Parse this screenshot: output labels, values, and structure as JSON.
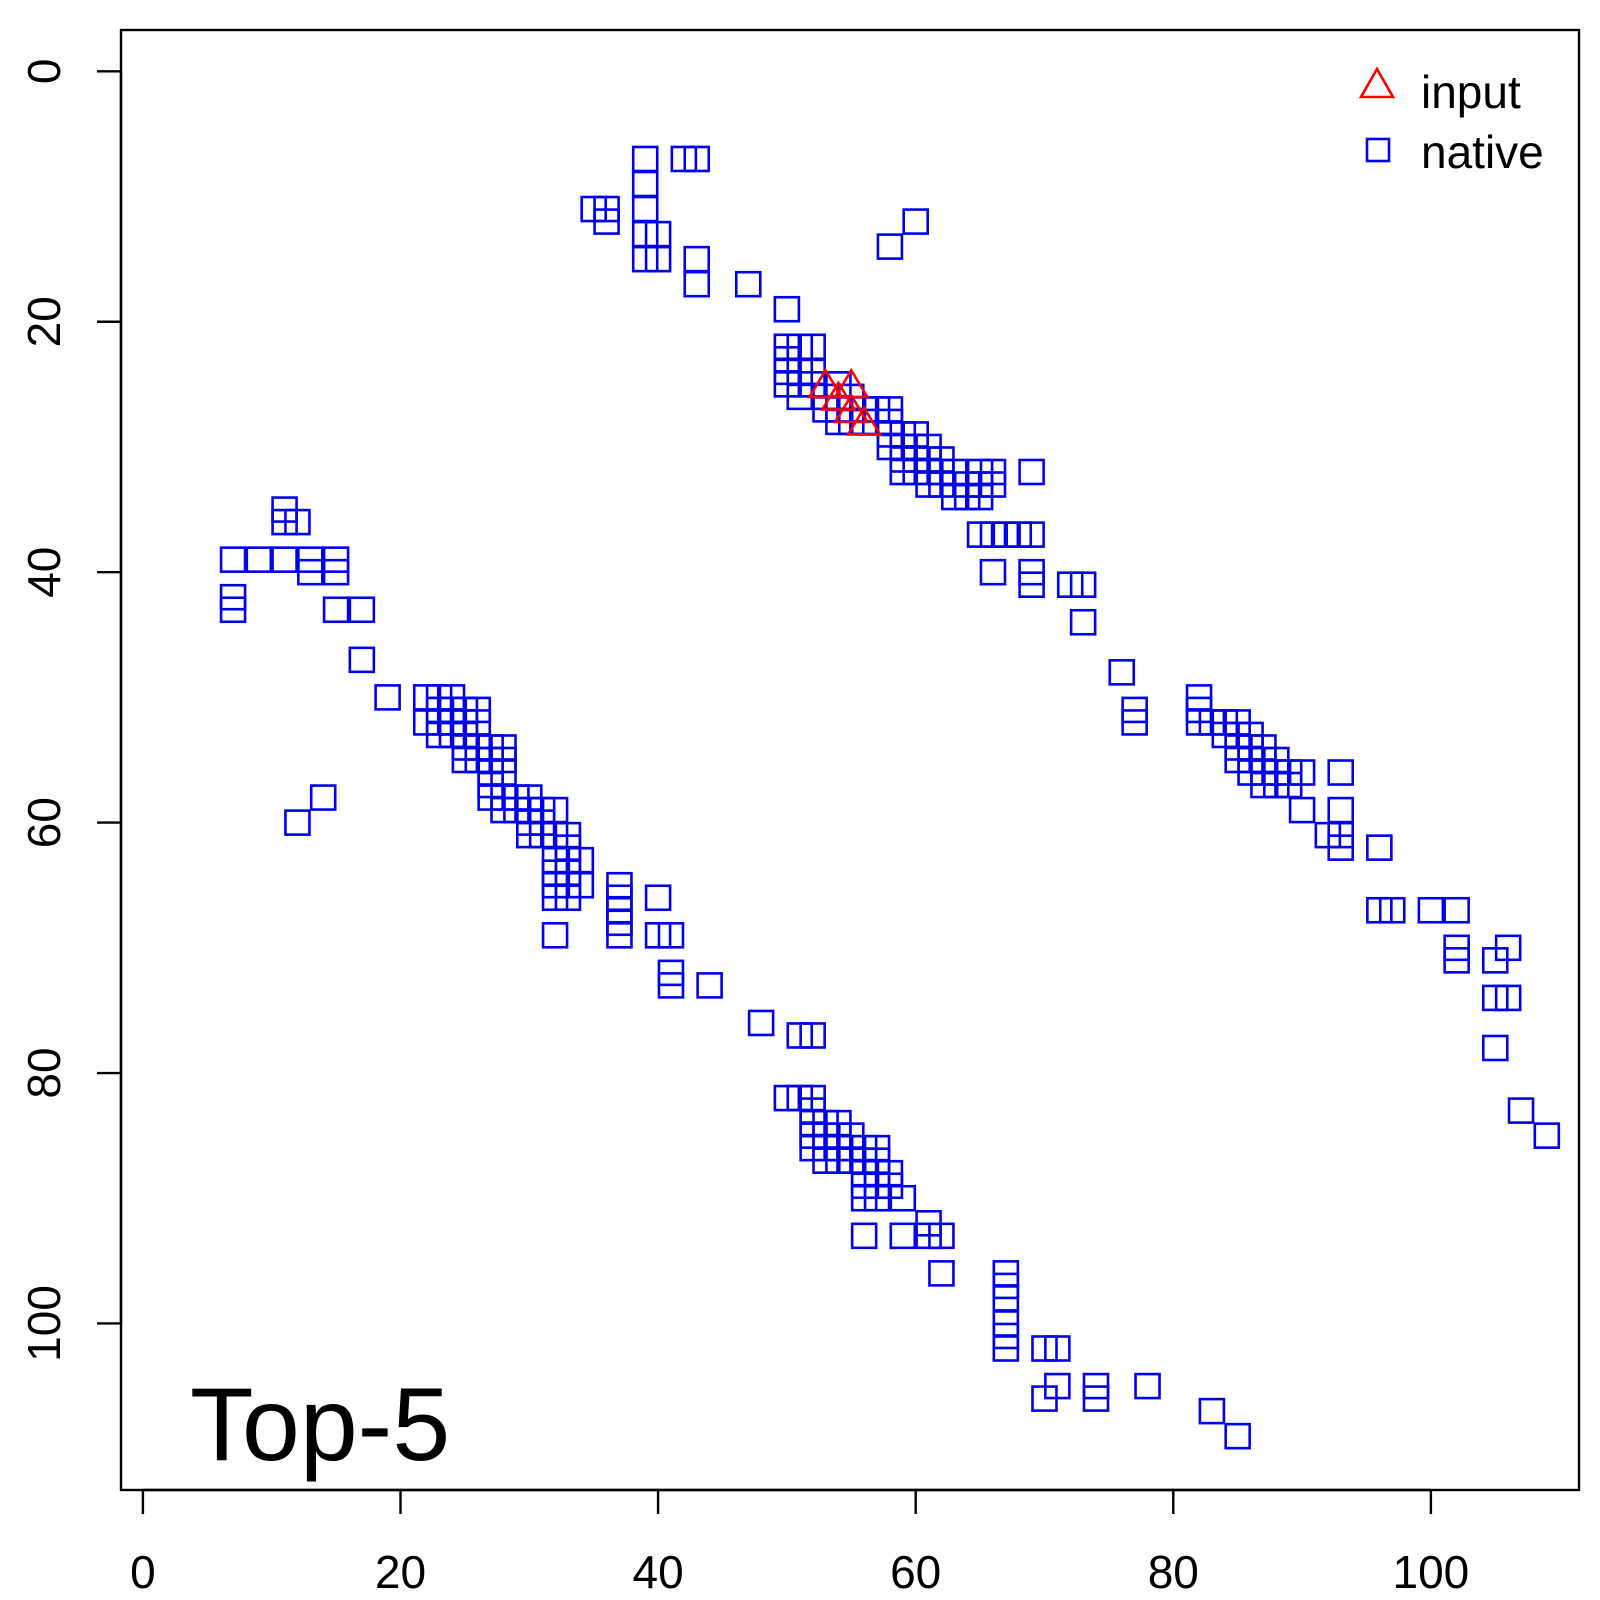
{
  "chart_data": {
    "type": "scatter",
    "title": "",
    "xlabel": "",
    "ylabel": "",
    "xlim": [
      -1.7,
      111.5
    ],
    "ylim": [
      -3.3,
      113.3
    ],
    "y_reversed": true,
    "grid": false,
    "panel_label": "Top-5",
    "x_ticks": [
      "0",
      "20",
      "40",
      "60",
      "80",
      "100"
    ],
    "y_ticks": [
      "0",
      "20",
      "40",
      "60",
      "80",
      "100"
    ],
    "legend": {
      "position": "top-right",
      "entries": [
        {
          "label": "input",
          "marker": "triangle",
          "color": "#ff0000"
        },
        {
          "label": "native",
          "marker": "square",
          "color": "#0000ee"
        }
      ]
    },
    "series": [
      {
        "name": "input",
        "marker": "triangle",
        "color": "#ff0000",
        "points": [
          [
            53,
            25
          ],
          [
            54,
            26
          ],
          [
            55,
            25
          ],
          [
            55,
            27
          ],
          [
            56,
            28
          ]
        ]
      },
      {
        "name": "native",
        "marker": "square",
        "color": "#0000ee",
        "points": [
          [
            39,
            7
          ],
          [
            39,
            9
          ],
          [
            39,
            11
          ],
          [
            39,
            13
          ],
          [
            39,
            15
          ],
          [
            40,
            13
          ],
          [
            40,
            15
          ],
          [
            42,
            7
          ],
          [
            43,
            7
          ],
          [
            35,
            11
          ],
          [
            36,
            11
          ],
          [
            36,
            12
          ],
          [
            43,
            15
          ],
          [
            43,
            17
          ],
          [
            47,
            17
          ],
          [
            50,
            19
          ],
          [
            58,
            14
          ],
          [
            60,
            12
          ],
          [
            50,
            22
          ],
          [
            50,
            23
          ],
          [
            50,
            24
          ],
          [
            50,
            25
          ],
          [
            51,
            22
          ],
          [
            51,
            24
          ],
          [
            51,
            26
          ],
          [
            52,
            22
          ],
          [
            52,
            24
          ],
          [
            52,
            25
          ],
          [
            53,
            26
          ],
          [
            53,
            27
          ],
          [
            54,
            25
          ],
          [
            54,
            27
          ],
          [
            54,
            28
          ],
          [
            55,
            26
          ],
          [
            55,
            28
          ],
          [
            56,
            27
          ],
          [
            56,
            28
          ],
          [
            57,
            27
          ],
          [
            58,
            27
          ],
          [
            58,
            28
          ],
          [
            58,
            29
          ],
          [
            58,
            30
          ],
          [
            59,
            29
          ],
          [
            59,
            30
          ],
          [
            59,
            31
          ],
          [
            59,
            32
          ],
          [
            60,
            29
          ],
          [
            60,
            30
          ],
          [
            60,
            31
          ],
          [
            60,
            32
          ],
          [
            61,
            30
          ],
          [
            61,
            31
          ],
          [
            61,
            32
          ],
          [
            61,
            33
          ],
          [
            62,
            31
          ],
          [
            62,
            32
          ],
          [
            62,
            33
          ],
          [
            63,
            32
          ],
          [
            63,
            34
          ],
          [
            64,
            33
          ],
          [
            64,
            34
          ],
          [
            65,
            32
          ],
          [
            65,
            33
          ],
          [
            65,
            34
          ],
          [
            66,
            32
          ],
          [
            66,
            33
          ],
          [
            65,
            37
          ],
          [
            66,
            37
          ],
          [
            67,
            37
          ],
          [
            66,
            40
          ],
          [
            68,
            37
          ],
          [
            69,
            37
          ],
          [
            69,
            32
          ],
          [
            69,
            40
          ],
          [
            69,
            41
          ],
          [
            72,
            41
          ],
          [
            73,
            41
          ],
          [
            73,
            44
          ],
          [
            76,
            48
          ],
          [
            77,
            51
          ],
          [
            77,
            52
          ],
          [
            82,
            50
          ],
          [
            82,
            51
          ],
          [
            82,
            52
          ],
          [
            83,
            52
          ],
          [
            84,
            52
          ],
          [
            84,
            53
          ],
          [
            85,
            52
          ],
          [
            85,
            53
          ],
          [
            85,
            54
          ],
          [
            85,
            55
          ],
          [
            86,
            53
          ],
          [
            86,
            54
          ],
          [
            86,
            55
          ],
          [
            86,
            56
          ],
          [
            87,
            54
          ],
          [
            87,
            55
          ],
          [
            87,
            56
          ],
          [
            87,
            57
          ],
          [
            88,
            55
          ],
          [
            88,
            56
          ],
          [
            88,
            57
          ],
          [
            89,
            56
          ],
          [
            89,
            57
          ],
          [
            90,
            56
          ],
          [
            90,
            59
          ],
          [
            93,
            56
          ],
          [
            93,
            59
          ],
          [
            93,
            61
          ],
          [
            93,
            62
          ],
          [
            92,
            61
          ],
          [
            96,
            62
          ],
          [
            96,
            67
          ],
          [
            97,
            67
          ],
          [
            100,
            67
          ],
          [
            102,
            67
          ],
          [
            102,
            70
          ],
          [
            102,
            71
          ],
          [
            105,
            71
          ],
          [
            106,
            70
          ],
          [
            105,
            74
          ],
          [
            106,
            74
          ],
          [
            105,
            78
          ],
          [
            107,
            83
          ],
          [
            109,
            85
          ],
          [
            7,
            39
          ],
          [
            7,
            42
          ],
          [
            7,
            43
          ],
          [
            9,
            39
          ],
          [
            11,
            35
          ],
          [
            11,
            36
          ],
          [
            11,
            39
          ],
          [
            12,
            36
          ],
          [
            13,
            39
          ],
          [
            13,
            40
          ],
          [
            15,
            39
          ],
          [
            15,
            40
          ],
          [
            15,
            43
          ],
          [
            17,
            43
          ],
          [
            17,
            47
          ],
          [
            19,
            50
          ],
          [
            12,
            60
          ],
          [
            14,
            58
          ],
          [
            22,
            50
          ],
          [
            22,
            52
          ],
          [
            23,
            50
          ],
          [
            23,
            51
          ],
          [
            23,
            52
          ],
          [
            23,
            53
          ],
          [
            24,
            50
          ],
          [
            24,
            51
          ],
          [
            24,
            52
          ],
          [
            24,
            53
          ],
          [
            25,
            51
          ],
          [
            25,
            52
          ],
          [
            25,
            53
          ],
          [
            25,
            54
          ],
          [
            25,
            55
          ],
          [
            26,
            51
          ],
          [
            26,
            52
          ],
          [
            26,
            54
          ],
          [
            26,
            55
          ],
          [
            27,
            54
          ],
          [
            27,
            55
          ],
          [
            27,
            56
          ],
          [
            27,
            57
          ],
          [
            27,
            58
          ],
          [
            28,
            54
          ],
          [
            28,
            55
          ],
          [
            28,
            56
          ],
          [
            28,
            58
          ],
          [
            28,
            59
          ],
          [
            29,
            58
          ],
          [
            29,
            59
          ],
          [
            30,
            58
          ],
          [
            30,
            59
          ],
          [
            30,
            60
          ],
          [
            30,
            61
          ],
          [
            31,
            59
          ],
          [
            31,
            60
          ],
          [
            31,
            61
          ],
          [
            32,
            59
          ],
          [
            32,
            61
          ],
          [
            32,
            63
          ],
          [
            32,
            64
          ],
          [
            32,
            65
          ],
          [
            32,
            66
          ],
          [
            33,
            61
          ],
          [
            33,
            62
          ],
          [
            33,
            63
          ],
          [
            33,
            64
          ],
          [
            33,
            65
          ],
          [
            33,
            66
          ],
          [
            34,
            63
          ],
          [
            34,
            65
          ],
          [
            32,
            69
          ],
          [
            37,
            65
          ],
          [
            37,
            66
          ],
          [
            37,
            67
          ],
          [
            37,
            68
          ],
          [
            37,
            69
          ],
          [
            40,
            66
          ],
          [
            40,
            69
          ],
          [
            41,
            69
          ],
          [
            41,
            72
          ],
          [
            41,
            73
          ],
          [
            44,
            73
          ],
          [
            48,
            76
          ],
          [
            51,
            77
          ],
          [
            52,
            77
          ],
          [
            50,
            82
          ],
          [
            51,
            82
          ],
          [
            52,
            82
          ],
          [
            52,
            83
          ],
          [
            52,
            84
          ],
          [
            52,
            85
          ],
          [
            52,
            86
          ],
          [
            53,
            84
          ],
          [
            53,
            85
          ],
          [
            53,
            86
          ],
          [
            53,
            87
          ],
          [
            54,
            84
          ],
          [
            54,
            85
          ],
          [
            54,
            86
          ],
          [
            54,
            87
          ],
          [
            55,
            85
          ],
          [
            55,
            86
          ],
          [
            55,
            87
          ],
          [
            56,
            86
          ],
          [
            56,
            87
          ],
          [
            56,
            88
          ],
          [
            56,
            89
          ],
          [
            56,
            90
          ],
          [
            56,
            93
          ],
          [
            57,
            86
          ],
          [
            57,
            87
          ],
          [
            57,
            88
          ],
          [
            57,
            89
          ],
          [
            57,
            90
          ],
          [
            58,
            88
          ],
          [
            58,
            89
          ],
          [
            59,
            90
          ],
          [
            59,
            93
          ],
          [
            61,
            92
          ],
          [
            61,
            93
          ],
          [
            62,
            93
          ],
          [
            62,
            96
          ],
          [
            67,
            96
          ],
          [
            67,
            97
          ],
          [
            67,
            98
          ],
          [
            67,
            100
          ],
          [
            67,
            101
          ],
          [
            67,
            102
          ],
          [
            70,
            102
          ],
          [
            71,
            102
          ],
          [
            70,
            106
          ],
          [
            71,
            105
          ],
          [
            74,
            105
          ],
          [
            74,
            106
          ],
          [
            78,
            105
          ],
          [
            83,
            107
          ],
          [
            85,
            109
          ]
        ]
      }
    ]
  }
}
